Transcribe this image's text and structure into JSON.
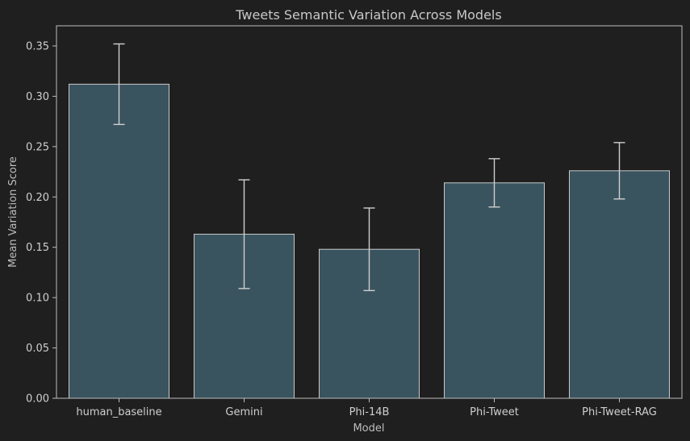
{
  "chart_data": {
    "type": "bar",
    "title": "Tweets Semantic Variation Across Models",
    "xlabel": "Model",
    "ylabel": "Mean Variation Score",
    "categories": [
      "human_baseline",
      "Gemini",
      "Phi-14B",
      "Phi-Tweet",
      "Phi-Tweet-RAG"
    ],
    "values": [
      0.312,
      0.163,
      0.148,
      0.214,
      0.226
    ],
    "errors": [
      0.04,
      0.054,
      0.041,
      0.024,
      0.028
    ],
    "ylim": [
      0,
      0.37
    ],
    "yticks": [
      0.0,
      0.05,
      0.1,
      0.15,
      0.2,
      0.25,
      0.3,
      0.35
    ],
    "ytick_labels": [
      "0.00",
      "0.05",
      "0.10",
      "0.15",
      "0.20",
      "0.25",
      "0.30",
      "0.35"
    ],
    "grid": false,
    "colors": {
      "background": "#1f1f1f",
      "bar_fill": "#3a545f",
      "bar_edge": "#c9c9c9",
      "error_bar": "#cfcfcf",
      "text": "#c8c8c8"
    }
  }
}
